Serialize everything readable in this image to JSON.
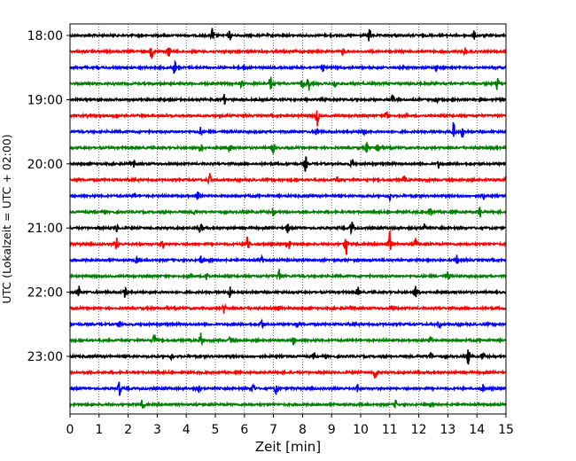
{
  "chart_data": {
    "type": "line",
    "title": "",
    "xlabel": "Zeit  [min]",
    "ylabel": "UTC (Lokalzeit = UTC + 02:00)",
    "xlim": [
      0,
      15
    ],
    "x_ticks": [
      "0",
      "1",
      "2",
      "3",
      "4",
      "5",
      "6",
      "7",
      "8",
      "9",
      "10",
      "11",
      "12",
      "13",
      "14",
      "15"
    ],
    "y_ticks": [
      "18:00",
      "19:00",
      "20:00",
      "21:00",
      "22:00",
      "23:00"
    ],
    "grid": "vertical dotted lines at each minute",
    "trace_interval_min": 15,
    "first_trace": "18:00",
    "trace_colors": [
      "#000000",
      "#ff0000",
      "#0000ff",
      "#008000"
    ],
    "traces": [
      {
        "start": "18:00",
        "events": [
          [
            4.9,
            1.0
          ],
          [
            5.5,
            0.6
          ],
          [
            10.3,
            0.9
          ],
          [
            13.9,
            0.5
          ]
        ]
      },
      {
        "start": "18:15",
        "events": [
          [
            2.8,
            0.8
          ],
          [
            3.4,
            0.7
          ],
          [
            9.4,
            0.5
          ],
          [
            13.6,
            0.5
          ]
        ]
      },
      {
        "start": "18:30",
        "events": [
          [
            3.6,
            0.9
          ],
          [
            6.0,
            0.4
          ],
          [
            8.7,
            0.5
          ],
          [
            12.6,
            0.4
          ]
        ]
      },
      {
        "start": "18:45",
        "events": [
          [
            5.9,
            0.5
          ],
          [
            6.9,
            0.9
          ],
          [
            8.0,
            0.7
          ],
          [
            8.2,
            1.0
          ],
          [
            9.1,
            0.7
          ],
          [
            14.7,
            0.8
          ]
        ]
      },
      {
        "start": "19:00",
        "events": [
          [
            5.3,
            0.6
          ],
          [
            11.1,
            0.8
          ],
          [
            12.6,
            0.6
          ]
        ]
      },
      {
        "start": "19:15",
        "events": [
          [
            1.6,
            0.5
          ],
          [
            8.5,
            1.3
          ],
          [
            10.9,
            0.8
          ]
        ]
      },
      {
        "start": "19:30",
        "events": [
          [
            4.5,
            0.6
          ],
          [
            8.5,
            0.6
          ],
          [
            10.1,
            0.7
          ],
          [
            13.2,
            1.2
          ],
          [
            13.5,
            0.7
          ]
        ]
      },
      {
        "start": "19:45",
        "events": [
          [
            4.5,
            0.7
          ],
          [
            5.5,
            0.6
          ],
          [
            7.0,
            0.8
          ],
          [
            10.2,
            0.7
          ],
          [
            10.6,
            0.8
          ]
        ]
      },
      {
        "start": "20:00",
        "events": [
          [
            2.2,
            0.4
          ],
          [
            8.1,
            1.0
          ],
          [
            9.7,
            0.6
          ],
          [
            12.7,
            0.6
          ]
        ]
      },
      {
        "start": "20:15",
        "events": [
          [
            4.8,
            0.8
          ],
          [
            9.2,
            0.4
          ],
          [
            11.5,
            0.5
          ],
          [
            15.0,
            0.4
          ]
        ]
      },
      {
        "start": "20:30",
        "events": [
          [
            2.2,
            0.5
          ],
          [
            4.4,
            0.8
          ],
          [
            11.0,
            0.5
          ],
          [
            14.2,
            0.6
          ]
        ]
      },
      {
        "start": "20:45",
        "events": [
          [
            4.3,
            0.4
          ],
          [
            7.0,
            0.6
          ],
          [
            12.4,
            0.6
          ],
          [
            14.1,
            0.7
          ]
        ]
      },
      {
        "start": "21:00",
        "events": [
          [
            1.6,
            0.5
          ],
          [
            4.5,
            0.8
          ],
          [
            7.5,
            0.6
          ],
          [
            9.7,
            1.0
          ],
          [
            12.2,
            0.6
          ]
        ]
      },
      {
        "start": "21:15",
        "events": [
          [
            1.6,
            0.8
          ],
          [
            3.2,
            0.6
          ],
          [
            6.1,
            1.4
          ],
          [
            7.5,
            1.0
          ],
          [
            9.5,
            1.6
          ],
          [
            11.0,
            1.6
          ],
          [
            11.9,
            1.0
          ]
        ]
      },
      {
        "start": "21:30",
        "events": [
          [
            2.3,
            0.5
          ],
          [
            4.5,
            0.5
          ],
          [
            6.6,
            0.4
          ],
          [
            13.3,
            0.6
          ]
        ]
      },
      {
        "start": "21:45",
        "events": [
          [
            4.7,
            0.9
          ],
          [
            7.2,
            1.0
          ],
          [
            13.0,
            0.5
          ]
        ]
      },
      {
        "start": "22:00",
        "events": [
          [
            0.3,
            0.9
          ],
          [
            1.9,
            0.8
          ],
          [
            5.5,
            0.6
          ],
          [
            9.9,
            0.6
          ],
          [
            11.9,
            0.8
          ]
        ]
      },
      {
        "start": "22:15",
        "events": [
          [
            5.3,
            0.6
          ],
          [
            7.2,
            0.4
          ],
          [
            11.1,
            0.4
          ]
        ]
      },
      {
        "start": "22:30",
        "events": [
          [
            1.7,
            0.6
          ],
          [
            6.6,
            0.6
          ],
          [
            7.8,
            0.4
          ],
          [
            12.7,
            0.5
          ]
        ]
      },
      {
        "start": "22:45",
        "events": [
          [
            2.9,
            0.8
          ],
          [
            4.5,
            0.9
          ],
          [
            5.5,
            0.4
          ],
          [
            7.7,
            0.5
          ],
          [
            12.4,
            0.5
          ]
        ]
      },
      {
        "start": "23:00",
        "events": [
          [
            3.5,
            0.4
          ],
          [
            8.4,
            0.4
          ],
          [
            12.4,
            0.6
          ],
          [
            13.7,
            1.1
          ],
          [
            14.2,
            0.5
          ]
        ]
      },
      {
        "start": "23:15",
        "events": [
          [
            10.5,
            0.9
          ]
        ]
      },
      {
        "start": "23:30",
        "events": [
          [
            1.7,
            1.0
          ],
          [
            4.4,
            0.6
          ],
          [
            6.3,
            0.6
          ],
          [
            7.1,
            0.7
          ],
          [
            9.9,
            0.6
          ],
          [
            14.2,
            0.8
          ]
        ]
      },
      {
        "start": "23:45",
        "events": [
          [
            2.5,
            0.7
          ],
          [
            11.2,
            0.5
          ]
        ]
      }
    ]
  }
}
